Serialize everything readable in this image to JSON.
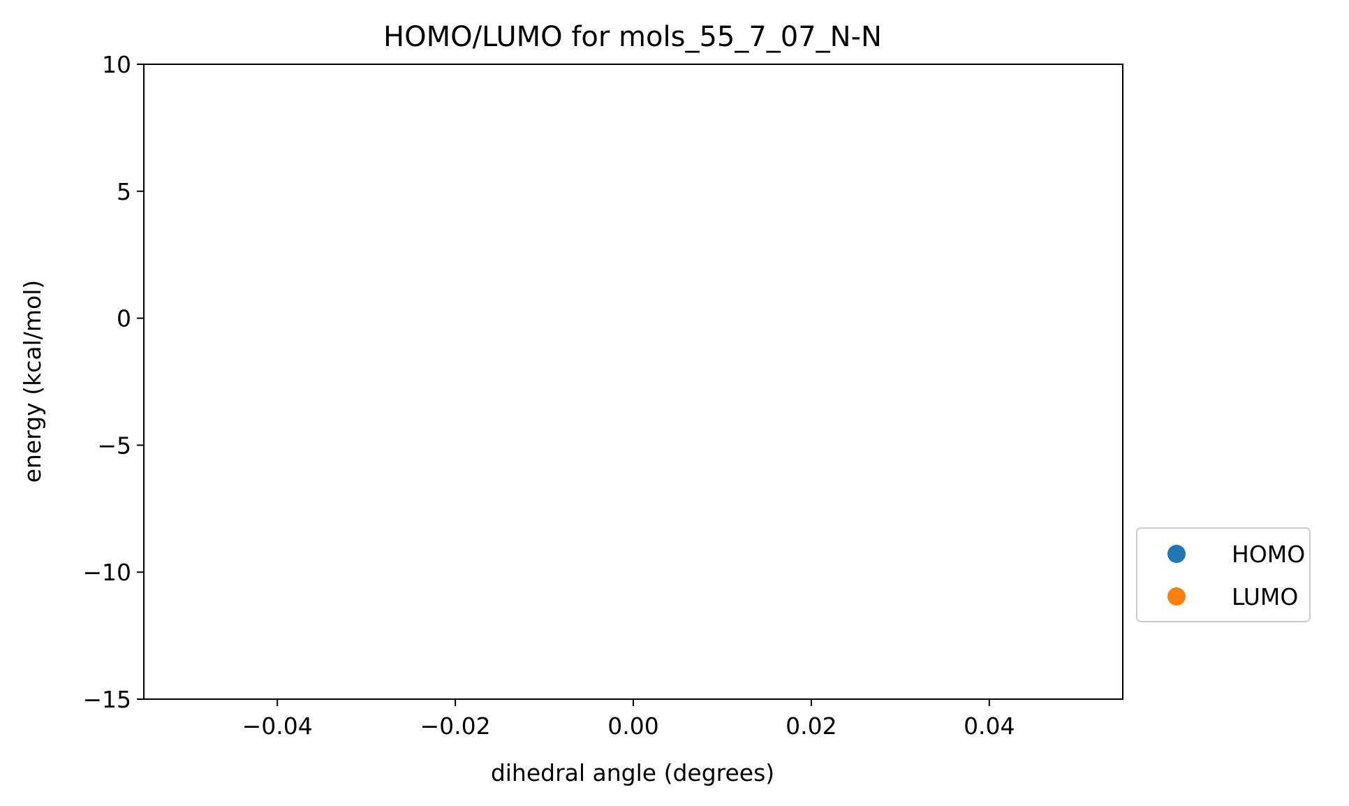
{
  "chart_data": {
    "type": "scatter",
    "title": "HOMO/LUMO for mols_55_7_07_N-N",
    "xlabel": "dihedral angle (degrees)",
    "ylabel": "energy (kcal/mol)",
    "xlim": [
      -0.055,
      0.055
    ],
    "ylim": [
      -15,
      10
    ],
    "x_ticks": [
      -0.04,
      -0.02,
      0.0,
      0.02,
      0.04
    ],
    "x_tick_labels": [
      "−0.04",
      "−0.02",
      "0.00",
      "0.02",
      "0.04"
    ],
    "y_ticks": [
      10,
      5,
      0,
      -5,
      -10,
      -15
    ],
    "y_tick_labels": [
      "10",
      "5",
      "0",
      "−5",
      "−10",
      "−15"
    ],
    "grid": false,
    "legend_position": "outside-right-lower",
    "series": [
      {
        "name": "HOMO",
        "color": "#1f77b4",
        "x": [],
        "y": []
      },
      {
        "name": "LUMO",
        "color": "#ff7f0e",
        "x": [],
        "y": []
      }
    ]
  }
}
